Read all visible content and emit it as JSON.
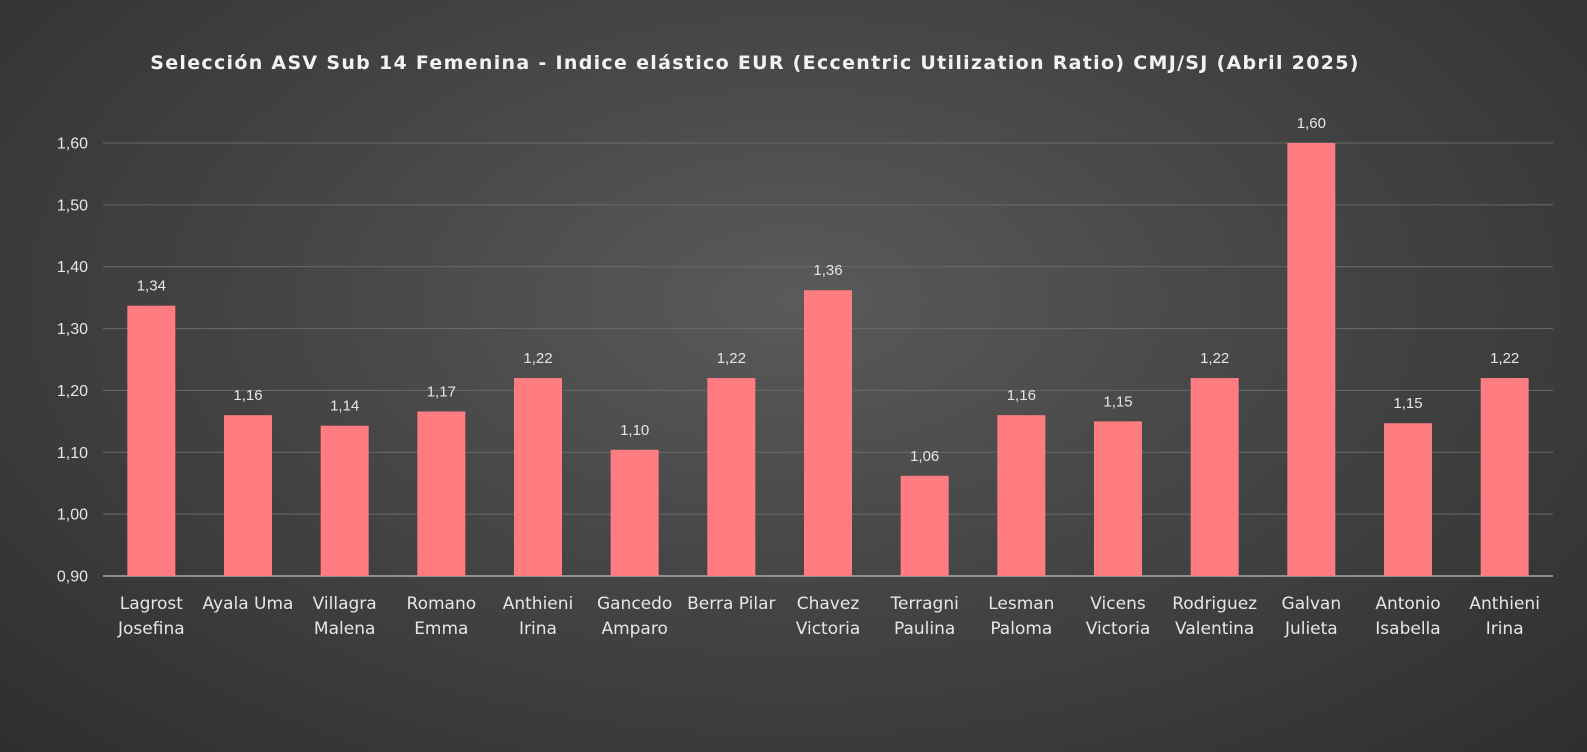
{
  "chart_data": {
    "type": "bar",
    "title": "Selección ASV Sub 14 Femenina - Indice elástico EUR (Eccentric Utilization Ratio) CMJ/SJ (Abril 2025)",
    "xlabel": "",
    "ylabel": "",
    "ylim": [
      0.9,
      1.6
    ],
    "yticks": [
      0.9,
      1.0,
      1.1,
      1.2,
      1.3,
      1.4,
      1.5,
      1.6
    ],
    "ytick_labels": [
      "0,90",
      "1,00",
      "1,10",
      "1,20",
      "1,30",
      "1,40",
      "1,50",
      "1,60"
    ],
    "grid": true,
    "legend": "none",
    "bar_color": "#ff7c80",
    "categories": [
      [
        "Lagrost",
        "Josefina"
      ],
      [
        "Ayala Uma"
      ],
      [
        "Villagra",
        "Malena"
      ],
      [
        "Romano",
        "Emma"
      ],
      [
        "Anthieni",
        "Irina"
      ],
      [
        "Gancedo",
        "Amparo"
      ],
      [
        "Berra Pilar"
      ],
      [
        "Chavez",
        "Victoria"
      ],
      [
        "Terragni",
        "Paulina"
      ],
      [
        "Lesman",
        "Paloma"
      ],
      [
        "Vicens",
        "Victoria"
      ],
      [
        "Rodriguez",
        "Valentina"
      ],
      [
        "Galvan",
        "Julieta"
      ],
      [
        "Antonio",
        "Isabella"
      ],
      [
        "Anthieni",
        "Irina"
      ]
    ],
    "values": [
      1.337,
      1.16,
      1.143,
      1.166,
      1.22,
      1.104,
      1.22,
      1.362,
      1.062,
      1.16,
      1.15,
      1.22,
      1.6,
      1.147,
      1.22
    ],
    "data_labels": [
      "1,34",
      "1,16",
      "1,14",
      "1,17",
      "1,22",
      "1,10",
      "1,22",
      "1,36",
      "1,06",
      "1,16",
      "1,15",
      "1,22",
      "1,60",
      "1,15",
      "1,22"
    ]
  }
}
